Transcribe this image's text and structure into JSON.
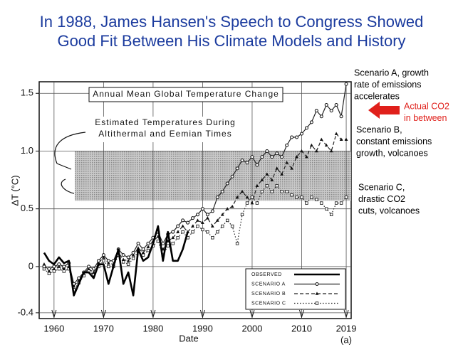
{
  "chart_data": {
    "type": "line",
    "title": [
      "In 1988, James Hansen's Speech to Congress Showed",
      "Good Fit Between His Climate Models and History"
    ],
    "title_color": "#1b3b9e",
    "inner_title": "Annual Mean Global Temperature Change",
    "band_label": [
      "Estimated Temperatures During",
      "Altithermal and Eemian Times"
    ],
    "band": [
      0.57,
      1.0
    ],
    "ylabel": "ΔT (°C)",
    "xlabel": "Date",
    "panel_label": "(a)",
    "xlim": [
      1957,
      2020
    ],
    "ylim": [
      -0.45,
      1.6
    ],
    "xticks": [
      1960,
      1970,
      1980,
      1990,
      2000,
      2010,
      2019
    ],
    "yticks": [
      1.5,
      {
        "value": 1.0,
        "label": "1.0"
      },
      0.5,
      0,
      -0.4
    ],
    "grid": true,
    "legend": "lower right",
    "x": [
      1958,
      1959,
      1960,
      1961,
      1962,
      1963,
      1964,
      1965,
      1966,
      1967,
      1968,
      1969,
      1970,
      1971,
      1972,
      1973,
      1974,
      1975,
      1976,
      1977,
      1978,
      1979,
      1980,
      1981,
      1982,
      1983,
      1984,
      1985,
      1986,
      1987,
      1988,
      1989,
      1990,
      1991,
      1992,
      1993,
      1994,
      1995,
      1996,
      1997,
      1998,
      1999,
      2000,
      2001,
      2002,
      2003,
      2004,
      2005,
      2006,
      2007,
      2008,
      2009,
      2010,
      2011,
      2012,
      2013,
      2014,
      2015,
      2016,
      2017,
      2018,
      2019
    ],
    "series": [
      {
        "name": "OBSERVED",
        "color": "#000000",
        "width": 2.6,
        "dash": "solid",
        "marker": "none",
        "values": [
          0.12,
          0.05,
          0.02,
          0.08,
          0.03,
          0.05,
          -0.25,
          -0.15,
          -0.05,
          -0.05,
          -0.1,
          0.02,
          0.02,
          -0.15,
          0.0,
          0.15,
          -0.15,
          -0.05,
          -0.25,
          0.15,
          0.05,
          0.08,
          0.2,
          0.35,
          0.05,
          0.3,
          0.05,
          0.05,
          0.15,
          0.3,
          null,
          null,
          null,
          null,
          null,
          null,
          null,
          null,
          null,
          null,
          null,
          null,
          null,
          null,
          null,
          null,
          null,
          null,
          null,
          null,
          null,
          null,
          null,
          null,
          null,
          null,
          null,
          null,
          null,
          null,
          null,
          null
        ]
      },
      {
        "name": "SCENARIO A",
        "color": "#222222",
        "width": 1.2,
        "dash": "solid",
        "marker": "circle",
        "values": [
          0.0,
          -0.02,
          0.0,
          0.02,
          0.0,
          0.03,
          -0.15,
          -0.1,
          -0.05,
          0.0,
          -0.02,
          0.05,
          0.1,
          0.05,
          0.05,
          0.15,
          0.1,
          0.08,
          0.12,
          0.2,
          0.15,
          0.2,
          0.25,
          0.3,
          0.2,
          0.28,
          0.3,
          0.35,
          0.4,
          0.38,
          0.42,
          0.45,
          0.5,
          0.45,
          0.48,
          0.6,
          0.65,
          0.72,
          0.78,
          0.85,
          0.92,
          0.9,
          0.95,
          0.88,
          0.95,
          1.0,
          0.95,
          0.98,
          0.95,
          1.05,
          1.12,
          1.12,
          1.15,
          1.2,
          1.25,
          1.35,
          1.3,
          1.4,
          1.35,
          1.4,
          1.3,
          1.58
        ]
      },
      {
        "name": "SCENARIO B",
        "color": "#222222",
        "width": 1.2,
        "dash": "dashed",
        "marker": "triangle",
        "values": [
          0.02,
          -0.04,
          -0.02,
          0.0,
          -0.02,
          0.0,
          -0.17,
          -0.12,
          -0.06,
          -0.02,
          -0.05,
          0.03,
          0.08,
          0.03,
          0.02,
          0.12,
          0.06,
          0.05,
          0.1,
          0.16,
          0.12,
          0.17,
          0.22,
          0.26,
          0.15,
          0.22,
          0.25,
          0.3,
          0.35,
          0.3,
          0.35,
          0.4,
          0.38,
          0.42,
          0.35,
          0.4,
          0.45,
          0.5,
          0.52,
          0.6,
          0.65,
          0.6,
          0.55,
          0.7,
          0.75,
          0.8,
          0.75,
          0.85,
          0.8,
          0.9,
          0.85,
          0.95,
          1.0,
          0.95,
          1.05,
          1.0,
          1.1,
          1.05,
          1.0,
          1.15,
          1.1,
          1.1
        ]
      },
      {
        "name": "SCENARIO C",
        "color": "#222222",
        "width": 1.2,
        "dash": "dotted",
        "marker": "square",
        "values": [
          -0.02,
          -0.06,
          -0.04,
          -0.02,
          -0.04,
          -0.02,
          -0.2,
          -0.14,
          -0.08,
          -0.04,
          -0.07,
          0.0,
          0.05,
          0.0,
          0.0,
          0.1,
          0.04,
          0.02,
          0.07,
          0.13,
          0.1,
          0.14,
          0.18,
          0.22,
          0.1,
          0.18,
          0.2,
          0.25,
          0.3,
          0.25,
          0.3,
          0.35,
          0.32,
          0.3,
          0.25,
          0.3,
          0.35,
          0.4,
          0.35,
          0.2,
          0.45,
          0.55,
          0.6,
          0.55,
          0.65,
          0.7,
          0.65,
          0.7,
          0.65,
          0.65,
          0.62,
          0.6,
          0.6,
          0.55,
          0.6,
          0.58,
          0.55,
          0.5,
          0.45,
          0.55,
          0.55,
          0.6
        ]
      }
    ],
    "annotations": [
      {
        "lines": [
          "Scenario A, growth",
          "rate of emissions",
          "accelerates"
        ],
        "color": "#000000"
      },
      {
        "lines": [
          "Actual CO2",
          "in between"
        ],
        "color": "#e0201b"
      },
      {
        "lines": [
          "Scenario B,",
          "constant emissions",
          "growth, volcanoes"
        ],
        "color": "#000000"
      },
      {
        "lines": [
          "Scenario C,",
          "drastic CO2",
          "cuts, volcanoes"
        ],
        "color": "#000000"
      }
    ]
  }
}
